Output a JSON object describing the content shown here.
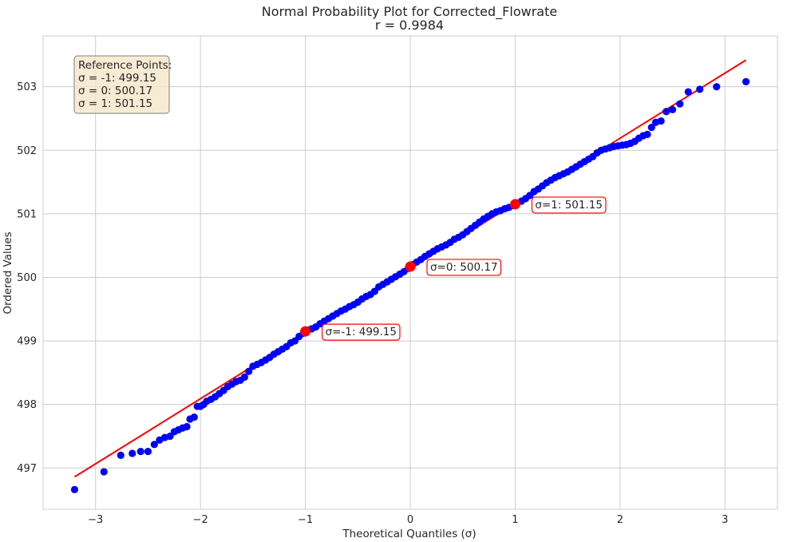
{
  "chart_data": {
    "type": "scatter",
    "title": "Normal Probability Plot for Corrected_Flowrate",
    "subtitle": "r = 0.9984",
    "xlabel": "Theoretical Quantiles (σ)",
    "ylabel": "Ordered Values",
    "xlim": [
      -3.5,
      3.5
    ],
    "ylim": [
      496.35,
      503.8
    ],
    "xticks": [
      -3,
      -2,
      -1,
      0,
      1,
      2,
      3
    ],
    "xtick_labels": [
      "−3",
      "−2",
      "−1",
      "0",
      "1",
      "2",
      "3"
    ],
    "yticks": [
      497,
      498,
      499,
      500,
      501,
      502,
      503
    ],
    "ytick_labels": [
      "497",
      "498",
      "499",
      "500",
      "501",
      "502",
      "503"
    ],
    "grid": true,
    "colors": {
      "points": "#0000ff",
      "fit_line": "#ff0000",
      "reference_points": "#ff0000",
      "box_fill": "#f5e6c8",
      "box_edge": "#7f7f7f",
      "grid": "#cccccc"
    },
    "fit_line": {
      "x": [
        -3.2,
        3.2
      ],
      "y": [
        496.86,
        503.42
      ]
    },
    "reference_box": {
      "lines": [
        "Reference Points:",
        "σ = -1: 499.15",
        "σ = 0: 500.17",
        "σ = 1: 501.15"
      ],
      "placement": "top-left"
    },
    "reference_points": [
      {
        "x": -1,
        "y": 499.15,
        "label": "σ=-1: 499.15"
      },
      {
        "x": 0,
        "y": 500.17,
        "label": "σ=0: 500.17"
      },
      {
        "x": 1,
        "y": 501.15,
        "label": "σ=1: 501.15"
      }
    ],
    "points": [
      [
        -3.2,
        496.66
      ],
      [
        -2.92,
        496.94
      ],
      [
        -2.76,
        497.2
      ],
      [
        -2.65,
        497.23
      ],
      [
        -2.57,
        497.26
      ],
      [
        -2.5,
        497.26
      ],
      [
        -2.44,
        497.37
      ],
      [
        -2.39,
        497.44
      ],
      [
        -2.34,
        497.48
      ],
      [
        -2.29,
        497.5
      ],
      [
        -2.25,
        497.57
      ],
      [
        -2.21,
        497.6
      ],
      [
        -2.17,
        497.63
      ],
      [
        -2.13,
        497.65
      ],
      [
        -2.1,
        497.77
      ],
      [
        -2.06,
        497.8
      ],
      [
        -2.03,
        497.97
      ],
      [
        -2.0,
        497.97
      ],
      [
        -1.97,
        498.0
      ],
      [
        -1.94,
        498.05
      ],
      [
        -1.9,
        498.08
      ],
      [
        -1.86,
        498.12
      ],
      [
        -1.82,
        498.17
      ],
      [
        -1.78,
        498.22
      ],
      [
        -1.74,
        498.28
      ],
      [
        -1.7,
        498.32
      ],
      [
        -1.66,
        498.36
      ],
      [
        -1.62,
        498.38
      ],
      [
        -1.58,
        498.43
      ],
      [
        -1.54,
        498.52
      ],
      [
        -1.5,
        498.6
      ],
      [
        -1.46,
        498.63
      ],
      [
        -1.42,
        498.66
      ],
      [
        -1.38,
        498.7
      ],
      [
        -1.34,
        498.74
      ],
      [
        -1.3,
        498.79
      ],
      [
        -1.26,
        498.83
      ],
      [
        -1.22,
        498.87
      ],
      [
        -1.18,
        498.91
      ],
      [
        -1.14,
        498.97
      ],
      [
        -1.1,
        499.0
      ],
      [
        -1.06,
        499.07
      ],
      [
        -1.02,
        499.12
      ],
      [
        -0.98,
        499.17
      ],
      [
        -0.94,
        499.19
      ],
      [
        -0.9,
        499.22
      ],
      [
        -0.86,
        499.27
      ],
      [
        -0.82,
        499.31
      ],
      [
        -0.78,
        499.35
      ],
      [
        -0.74,
        499.39
      ],
      [
        -0.7,
        499.43
      ],
      [
        -0.66,
        499.47
      ],
      [
        -0.62,
        499.5
      ],
      [
        -0.58,
        499.54
      ],
      [
        -0.54,
        499.57
      ],
      [
        -0.5,
        499.61
      ],
      [
        -0.46,
        499.66
      ],
      [
        -0.42,
        499.7
      ],
      [
        -0.38,
        499.73
      ],
      [
        -0.34,
        499.78
      ],
      [
        -0.3,
        499.85
      ],
      [
        -0.26,
        499.89
      ],
      [
        -0.22,
        499.93
      ],
      [
        -0.18,
        499.97
      ],
      [
        -0.14,
        500.01
      ],
      [
        -0.1,
        500.05
      ],
      [
        -0.06,
        500.09
      ],
      [
        -0.02,
        500.14
      ],
      [
        0.02,
        500.2
      ],
      [
        0.06,
        500.24
      ],
      [
        0.1,
        500.28
      ],
      [
        0.14,
        500.33
      ],
      [
        0.18,
        500.37
      ],
      [
        0.22,
        500.41
      ],
      [
        0.26,
        500.45
      ],
      [
        0.3,
        500.48
      ],
      [
        0.34,
        500.51
      ],
      [
        0.38,
        500.55
      ],
      [
        0.42,
        500.6
      ],
      [
        0.46,
        500.63
      ],
      [
        0.5,
        500.67
      ],
      [
        0.54,
        500.72
      ],
      [
        0.58,
        500.77
      ],
      [
        0.62,
        500.82
      ],
      [
        0.66,
        500.87
      ],
      [
        0.7,
        500.92
      ],
      [
        0.74,
        500.96
      ],
      [
        0.78,
        501.0
      ],
      [
        0.82,
        501.03
      ],
      [
        0.86,
        501.05
      ],
      [
        0.9,
        501.08
      ],
      [
        0.94,
        501.1
      ],
      [
        0.98,
        501.13
      ],
      [
        1.02,
        501.17
      ],
      [
        1.06,
        501.2
      ],
      [
        1.1,
        501.24
      ],
      [
        1.14,
        501.29
      ],
      [
        1.18,
        501.35
      ],
      [
        1.22,
        501.39
      ],
      [
        1.26,
        501.44
      ],
      [
        1.3,
        501.49
      ],
      [
        1.34,
        501.53
      ],
      [
        1.38,
        501.57
      ],
      [
        1.42,
        501.6
      ],
      [
        1.46,
        501.63
      ],
      [
        1.5,
        501.66
      ],
      [
        1.54,
        501.7
      ],
      [
        1.58,
        501.74
      ],
      [
        1.62,
        501.78
      ],
      [
        1.66,
        501.82
      ],
      [
        1.7,
        501.86
      ],
      [
        1.74,
        501.9
      ],
      [
        1.78,
        501.96
      ],
      [
        1.82,
        502.0
      ],
      [
        1.86,
        502.02
      ],
      [
        1.9,
        502.04
      ],
      [
        1.94,
        502.06
      ],
      [
        1.98,
        502.07
      ],
      [
        2.02,
        502.08
      ],
      [
        2.06,
        502.09
      ],
      [
        2.1,
        502.11
      ],
      [
        2.14,
        502.14
      ],
      [
        2.18,
        502.19
      ],
      [
        2.22,
        502.23
      ],
      [
        2.26,
        502.25
      ],
      [
        2.3,
        502.36
      ],
      [
        2.34,
        502.44
      ],
      [
        2.39,
        502.46
      ],
      [
        2.44,
        502.61
      ],
      [
        2.5,
        502.64
      ],
      [
        2.57,
        502.73
      ],
      [
        2.65,
        502.92
      ],
      [
        2.76,
        502.96
      ],
      [
        2.92,
        503.0
      ],
      [
        3.2,
        503.08
      ]
    ]
  }
}
